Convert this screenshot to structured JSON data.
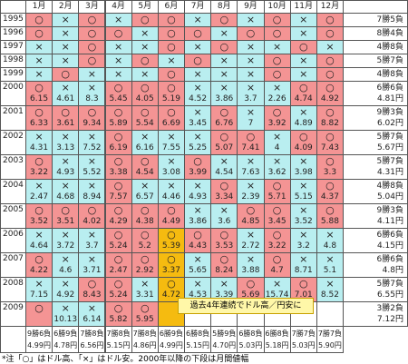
{
  "header": {
    "months": [
      "1月",
      "2月",
      "3月",
      "4月",
      "5月",
      "6月",
      "7月",
      "8月",
      "9月",
      "10月",
      "11月",
      "12月"
    ]
  },
  "rows": [
    {
      "year": "1995",
      "marks": [
        "○",
        "×",
        "○",
        "×",
        "○",
        "○",
        "×",
        "○",
        "×",
        "○",
        "×",
        "○"
      ],
      "summary": "7勝5負"
    },
    {
      "year": "1996",
      "marks": [
        "○",
        "×",
        "○",
        "○",
        "×",
        "○",
        "○",
        "×",
        "○",
        "○",
        "×",
        "○"
      ],
      "summary": "8勝4負"
    },
    {
      "year": "1997",
      "marks": [
        "×",
        "×",
        "○",
        "×",
        "×",
        "○",
        "×",
        "○",
        "×",
        "×",
        "○",
        "×"
      ],
      "summary": "4勝8負"
    },
    {
      "year": "1998",
      "marks": [
        "×",
        "×",
        "○",
        "×",
        "○",
        "×",
        "○",
        "×",
        "×",
        "○",
        "×",
        "○"
      ],
      "summary": "5勝7負"
    },
    {
      "year": "1999",
      "marks": [
        "×",
        "○",
        "×",
        "×",
        "×",
        "○",
        "×",
        "×",
        "×",
        "○",
        "×",
        "○"
      ],
      "summary": "4勝8負"
    },
    {
      "year": "2000",
      "marks": [
        "○",
        "×",
        "×",
        "○",
        "○",
        "○",
        "×",
        "×",
        "×",
        "×",
        "○",
        "○"
      ],
      "values": [
        6.15,
        4.61,
        8.3,
        5.45,
        4.05,
        5.19,
        4.52,
        3.86,
        3.7,
        2.26,
        4.74,
        4.92
      ],
      "summary": "6勝6負",
      "range": "4.81円"
    },
    {
      "year": "2001",
      "marks": [
        "○",
        "○",
        "○",
        "○",
        "○",
        "○",
        "×",
        "○",
        "×",
        "○",
        "×",
        "○"
      ],
      "values": [
        6.33,
        3.61,
        9.34,
        5.89,
        5.54,
        6.69,
        3.45,
        6.76,
        7,
        3.92,
        4.89,
        8.82
      ],
      "summary": "9勝3負",
      "range": "6.02円"
    },
    {
      "year": "2002",
      "marks": [
        "×",
        "×",
        "×",
        "○",
        "×",
        "×",
        "×",
        "○",
        "○",
        "×",
        "○",
        "○"
      ],
      "values": [
        4.31,
        3.13,
        7.52,
        6.19,
        6.16,
        7.55,
        5.25,
        5.07,
        7.41,
        4,
        4.09,
        7.43
      ],
      "summary": "5勝7負",
      "range": "5.67円"
    },
    {
      "year": "2003",
      "marks": [
        "○",
        "×",
        "×",
        "○",
        "○",
        "×",
        "○",
        "×",
        "×",
        "×",
        "×",
        "○"
      ],
      "values": [
        3.22,
        4.93,
        5.52,
        3.38,
        4.54,
        3.08,
        3.99,
        4.54,
        7.63,
        3.62,
        3.98,
        3.3
      ],
      "summary": "5勝7負",
      "range": "4.31円"
    },
    {
      "year": "2004",
      "marks": [
        "×",
        "×",
        "×",
        "○",
        "×",
        "×",
        "×",
        "○",
        "×",
        "○",
        "×",
        "○"
      ],
      "values": [
        2.47,
        4.68,
        8.94,
        7.57,
        6.57,
        4.46,
        4.93,
        3.34,
        2.39,
        5.71,
        5.15,
        4.37
      ],
      "summary": "4勝8負",
      "range": "5.04円"
    },
    {
      "year": "2005",
      "marks": [
        "○",
        "○",
        "○",
        "○",
        "○",
        "○",
        "×",
        "×",
        "○",
        "○",
        "×",
        "○"
      ],
      "values": [
        3.52,
        3.51,
        4.02,
        4.29,
        4.38,
        4.49,
        3.86,
        3.6,
        4.85,
        3.45,
        3.52,
        5.88
      ],
      "summary": "9勝3負",
      "range": "4.11円"
    },
    {
      "year": "2006",
      "marks": [
        "×",
        "×",
        "×",
        "○",
        "○",
        "○",
        "○",
        "○",
        "×",
        "○",
        "×",
        "×"
      ],
      "values": [
        4.64,
        3.72,
        3.7,
        5.24,
        5.2,
        5.39,
        4.43,
        3.53,
        2.72,
        3.22,
        3.2,
        4.8
      ],
      "summary": "6勝6負",
      "range": "4.15円"
    },
    {
      "year": "2007",
      "marks": [
        "○",
        "×",
        "×",
        "○",
        "○",
        "○",
        "×",
        "○",
        "×",
        "○",
        "×",
        "×"
      ],
      "values": [
        4.22,
        4.6,
        3.71,
        2.47,
        2.92,
        3.37,
        5.65,
        8.24,
        3.88,
        4.7,
        8.71,
        5.1
      ],
      "summary": "6勝6負",
      "range": "4.8円"
    },
    {
      "year": "2008",
      "marks": [
        "×",
        "×",
        "○",
        "○",
        "×",
        "○",
        "×",
        "×",
        "○",
        "×",
        "○",
        "×"
      ],
      "values": [
        7.15,
        4.92,
        8.43,
        5.24,
        3.31,
        4.72,
        4.53,
        3.39,
        5.69,
        15.74,
        7.01,
        8.52
      ],
      "summary": "5勝7負",
      "range": "6.55円"
    },
    {
      "year": "2009",
      "marks": [
        "○",
        "×",
        "×",
        "○",
        "○"
      ],
      "values": [
        null,
        10.13,
        6.14,
        5.82,
        5.95
      ],
      "summary": "3勝2負",
      "range": "7.12円"
    }
  ],
  "totals": [
    {
      "record": "9勝6負",
      "range": "4.99円"
    },
    {
      "record": "6勝9負",
      "range": "4.78円"
    },
    {
      "record": "7勝8負",
      "range": "6.56円"
    },
    {
      "record": "7勝8負",
      "range": "5.15円"
    },
    {
      "record": "7勝8負",
      "range": "4.86円"
    },
    {
      "record": "6勝9負",
      "range": "4.99円"
    },
    {
      "record": "6勝8負",
      "range": "5.15円"
    },
    {
      "record": "5勝9負",
      "range": "4.70円"
    },
    {
      "record": "6勝8負",
      "range": "5.03円"
    },
    {
      "record": "6勝8負",
      "range": "5.18円"
    },
    {
      "record": "7勝7負",
      "range": "5.03円"
    },
    {
      "record": "7勝7負",
      "range": "5.90円"
    }
  ],
  "callout": "過去4年連続でドル高／円安に",
  "note": "*注「○」はドル高、「×」はドル安。2000年以降の下段は月間値幅"
}
